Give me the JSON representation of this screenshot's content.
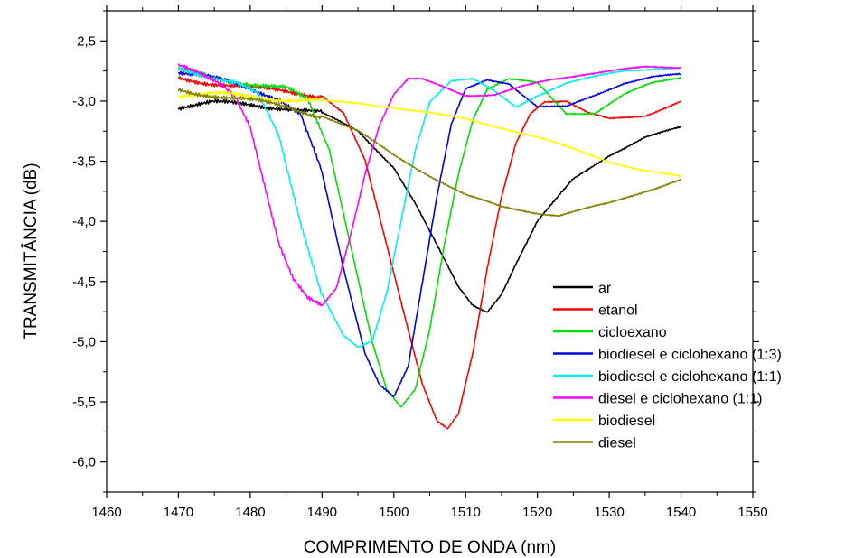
{
  "chart_data": {
    "type": "line",
    "title": "",
    "xlabel": "COMPRIMENTO DE ONDA (nm)",
    "ylabel": "TRANSMITÂNCIA (dB)",
    "xlim": [
      1460,
      1550
    ],
    "ylim": [
      -6.25,
      -2.25
    ],
    "x_ticks": [
      1460,
      1470,
      1480,
      1490,
      1500,
      1510,
      1520,
      1530,
      1540,
      1550
    ],
    "x_tick_labels": [
      "1460",
      "1470",
      "1480",
      "1490",
      "1500",
      "1510",
      "1520",
      "1530",
      "1540",
      "1550"
    ],
    "y_ticks": [
      -2.5,
      -3.0,
      -3.5,
      -4.0,
      -4.5,
      -5.0,
      -5.5,
      -6.0
    ],
    "y_tick_labels": [
      "-2,5",
      "-3,0",
      "-3,5",
      "-4,0",
      "-4,5",
      "-5,0",
      "-5,5",
      "-6,0"
    ],
    "grid": false,
    "legend_position": "bottom-right",
    "series": [
      {
        "name": "ar",
        "color": "#000000",
        "x": [
          1470,
          1475,
          1480,
          1485,
          1490,
          1495,
          1500,
          1503,
          1506,
          1509,
          1511,
          1513,
          1515,
          1517,
          1520,
          1525,
          1530,
          1535,
          1540
        ],
        "y": [
          -3.05,
          -3.02,
          -3.03,
          -3.05,
          -3.1,
          -3.25,
          -3.55,
          -3.85,
          -4.2,
          -4.55,
          -4.7,
          -4.75,
          -4.6,
          -4.35,
          -4.0,
          -3.65,
          -3.45,
          -3.3,
          -3.22
        ]
      },
      {
        "name": "etanol",
        "color": "#ff0000",
        "x": [
          1470,
          1475,
          1480,
          1485,
          1490,
          1493,
          1496,
          1499,
          1502,
          1504,
          1506,
          1507.5,
          1509,
          1511,
          1513,
          1515,
          1517,
          1519,
          1521,
          1524,
          1527,
          1530,
          1535,
          1540
        ],
        "y": [
          -2.8,
          -2.85,
          -2.9,
          -2.92,
          -2.95,
          -3.1,
          -3.5,
          -4.2,
          -4.9,
          -5.35,
          -5.65,
          -5.72,
          -5.6,
          -5.1,
          -4.4,
          -3.8,
          -3.35,
          -3.1,
          -3.0,
          -3.0,
          -3.1,
          -3.15,
          -3.12,
          -3.0
        ]
      },
      {
        "name": "cicloexano",
        "color": "#00dd00",
        "x": [
          1470,
          1475,
          1480,
          1485,
          1488,
          1491,
          1494,
          1497,
          1499,
          1501,
          1503,
          1505,
          1507,
          1509,
          1511,
          1513,
          1516,
          1520,
          1524,
          1528,
          1532,
          1536,
          1540
        ],
        "y": [
          -2.75,
          -2.8,
          -2.85,
          -2.9,
          -3.0,
          -3.4,
          -4.2,
          -5.0,
          -5.4,
          -5.55,
          -5.4,
          -4.9,
          -4.2,
          -3.6,
          -3.15,
          -2.9,
          -2.82,
          -2.85,
          -3.1,
          -3.1,
          -2.95,
          -2.85,
          -2.8
        ]
      },
      {
        "name": "biodiesel e ciclohexano (1:3)",
        "color": "#0000dd",
        "x": [
          1470,
          1475,
          1480,
          1484,
          1487,
          1490,
          1493,
          1496,
          1498,
          1500,
          1502,
          1504,
          1506,
          1508,
          1510,
          1513,
          1516,
          1520,
          1524,
          1528,
          1532,
          1536,
          1540
        ],
        "y": [
          -2.75,
          -2.82,
          -2.9,
          -2.97,
          -3.1,
          -3.6,
          -4.4,
          -5.1,
          -5.35,
          -5.45,
          -5.2,
          -4.5,
          -3.8,
          -3.2,
          -2.9,
          -2.82,
          -2.85,
          -3.05,
          -3.05,
          -2.95,
          -2.85,
          -2.8,
          -2.78
        ]
      },
      {
        "name": "biodiesel e ciclohexano (1:1)",
        "color": "#00eeee",
        "x": [
          1470,
          1474,
          1478,
          1481,
          1484,
          1487,
          1490,
          1493,
          1495,
          1497,
          1499,
          1501,
          1503,
          1505,
          1508,
          1511,
          1514,
          1517,
          1520,
          1524,
          1528,
          1532,
          1536,
          1540
        ],
        "y": [
          -2.72,
          -2.78,
          -2.85,
          -2.95,
          -3.3,
          -4.0,
          -4.6,
          -4.95,
          -5.05,
          -5.0,
          -4.6,
          -4.0,
          -3.4,
          -3.0,
          -2.83,
          -2.82,
          -2.92,
          -3.05,
          -2.95,
          -2.85,
          -2.8,
          -2.75,
          -2.73,
          -2.72
        ]
      },
      {
        "name": "diesel e ciclohexano (1:1)",
        "color": "#ff00ff",
        "x": [
          1470,
          1473,
          1476,
          1478,
          1480,
          1482,
          1484,
          1486,
          1488,
          1490,
          1492,
          1494,
          1496,
          1498,
          1500,
          1502,
          1504,
          1507,
          1510,
          1514,
          1518,
          1522,
          1526,
          1530,
          1535,
          1540
        ],
        "y": [
          -2.72,
          -2.78,
          -2.85,
          -2.95,
          -3.2,
          -3.7,
          -4.2,
          -4.5,
          -4.65,
          -4.7,
          -4.55,
          -4.1,
          -3.6,
          -3.2,
          -2.95,
          -2.82,
          -2.82,
          -2.88,
          -2.95,
          -2.95,
          -2.88,
          -2.82,
          -2.78,
          -2.75,
          -2.72,
          -2.72
        ]
      },
      {
        "name": "biodiesel",
        "color": "#ffff00",
        "x": [
          1470,
          1475,
          1480,
          1485,
          1490,
          1495,
          1500,
          1505,
          1510,
          1515,
          1520,
          1525,
          1530,
          1535,
          1540
        ],
        "y": [
          -2.95,
          -2.95,
          -2.96,
          -2.98,
          -3.0,
          -3.02,
          -3.05,
          -3.1,
          -3.15,
          -3.22,
          -3.3,
          -3.4,
          -3.5,
          -3.58,
          -3.63
        ]
      },
      {
        "name": "diesel",
        "color": "#808000",
        "x": [
          1470,
          1475,
          1480,
          1485,
          1490,
          1495,
          1500,
          1505,
          1510,
          1515,
          1520,
          1523,
          1525,
          1530,
          1535,
          1540
        ],
        "y": [
          -2.9,
          -2.95,
          -3.0,
          -3.05,
          -3.12,
          -3.25,
          -3.45,
          -3.62,
          -3.78,
          -3.88,
          -3.93,
          -3.95,
          -3.92,
          -3.85,
          -3.75,
          -3.65
        ]
      }
    ]
  }
}
